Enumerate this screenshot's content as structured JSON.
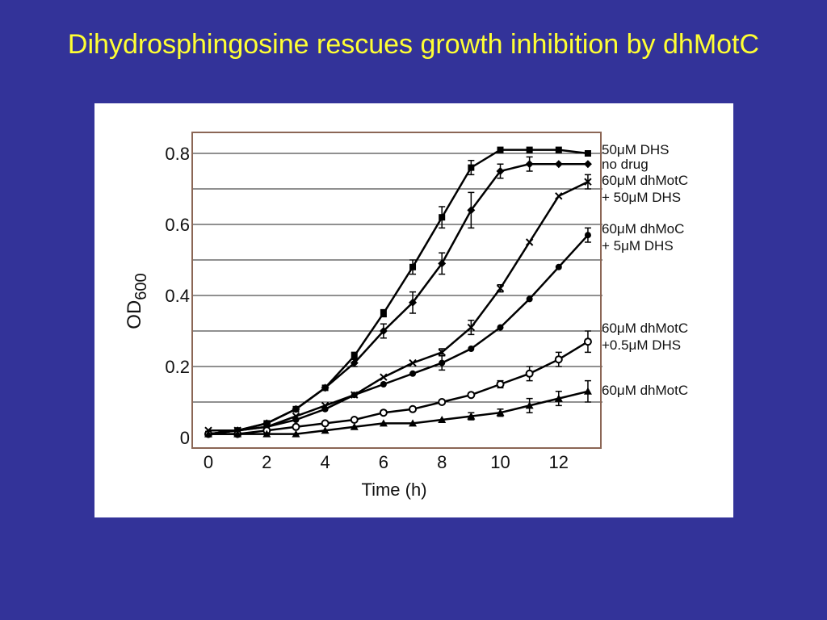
{
  "slide": {
    "title": "Dihydrosphingosine rescues growth inhibition by dhMotC",
    "background_color": "#333399",
    "title_color": "#ffff33"
  },
  "chart_data": {
    "type": "line",
    "title": "",
    "xlabel": "Time (h)",
    "ylabel_main": "OD",
    "ylabel_sub": "600",
    "xlim": [
      0,
      13.5
    ],
    "ylim": [
      0,
      0.85
    ],
    "xticks": [
      "0",
      "2",
      "4",
      "6",
      "8",
      "10",
      "12"
    ],
    "yticks": [
      "0",
      "0.2",
      "0.4",
      "0.6",
      "0.8"
    ],
    "ytick_values": [
      0,
      0.2,
      0.4,
      0.6,
      0.8
    ],
    "grid": "horizontal",
    "grid_values": [
      0.1,
      0.2,
      0.3,
      0.4,
      0.5,
      0.6,
      0.7,
      0.8
    ],
    "frame_color": "#8b6655",
    "x": [
      0,
      1,
      2,
      3,
      4,
      5,
      6,
      7,
      8,
      9,
      10,
      11,
      12,
      13
    ],
    "series": [
      {
        "name": "50μM DHS",
        "legend_lines": [
          "50μM DHS"
        ],
        "marker": "square",
        "values": [
          0.01,
          0.02,
          0.04,
          0.08,
          0.14,
          0.23,
          0.35,
          0.48,
          0.62,
          0.76,
          0.81,
          0.81,
          0.81,
          0.8
        ],
        "errors": [
          0,
          0,
          0,
          0,
          0,
          0.01,
          0.01,
          0.02,
          0.03,
          0.02,
          0,
          0,
          0,
          0
        ]
      },
      {
        "name": "no drug",
        "legend_lines": [
          "no drug"
        ],
        "marker": "diamond",
        "values": [
          0.01,
          0.02,
          0.04,
          0.08,
          0.14,
          0.21,
          0.3,
          0.38,
          0.49,
          0.64,
          0.75,
          0.77,
          0.77,
          0.77
        ],
        "errors": [
          0,
          0,
          0,
          0,
          0,
          0.01,
          0.02,
          0.03,
          0.03,
          0.05,
          0.02,
          0.02,
          0,
          0
        ]
      },
      {
        "name": "60μM dhMotC + 50μM DHS",
        "legend_lines": [
          "60μM dhMotC",
          "+ 50μM DHS"
        ],
        "marker": "x",
        "values": [
          0.02,
          0.02,
          0.03,
          0.06,
          0.09,
          0.12,
          0.17,
          0.21,
          0.24,
          0.31,
          0.42,
          0.55,
          0.68,
          0.72
        ],
        "errors": [
          0,
          0,
          0,
          0,
          0,
          0,
          0,
          0,
          0.01,
          0.02,
          0.01,
          0,
          0,
          0.02
        ]
      },
      {
        "name": "60μM dhMoC + 5μM DHS",
        "legend_lines": [
          "60μM dhMoC",
          "+ 5μM DHS"
        ],
        "marker": "circle-filled",
        "values": [
          0.01,
          0.02,
          0.03,
          0.05,
          0.08,
          0.12,
          0.15,
          0.18,
          0.21,
          0.25,
          0.31,
          0.39,
          0.48,
          0.57
        ],
        "errors": [
          0,
          0,
          0,
          0,
          0,
          0,
          0,
          0,
          0.02,
          0,
          0,
          0,
          0,
          0.02
        ]
      },
      {
        "name": "60μM dhMotC +0.5μM DHS",
        "legend_lines": [
          "60μM dhMotC",
          "+0.5μM DHS"
        ],
        "marker": "circle-open",
        "values": [
          0.01,
          0.01,
          0.02,
          0.03,
          0.04,
          0.05,
          0.07,
          0.08,
          0.1,
          0.12,
          0.15,
          0.18,
          0.22,
          0.27
        ],
        "errors": [
          0,
          0,
          0,
          0,
          0,
          0,
          0,
          0,
          0,
          0,
          0.01,
          0.02,
          0.02,
          0.03
        ]
      },
      {
        "name": "60μM dhMotC",
        "legend_lines": [
          "60μM dhMotC"
        ],
        "marker": "triangle",
        "values": [
          0.01,
          0.01,
          0.01,
          0.01,
          0.02,
          0.03,
          0.04,
          0.04,
          0.05,
          0.06,
          0.07,
          0.09,
          0.11,
          0.13
        ],
        "errors": [
          0,
          0,
          0,
          0,
          0,
          0,
          0,
          0,
          0,
          0.01,
          0.01,
          0.02,
          0.02,
          0.03
        ]
      }
    ]
  }
}
